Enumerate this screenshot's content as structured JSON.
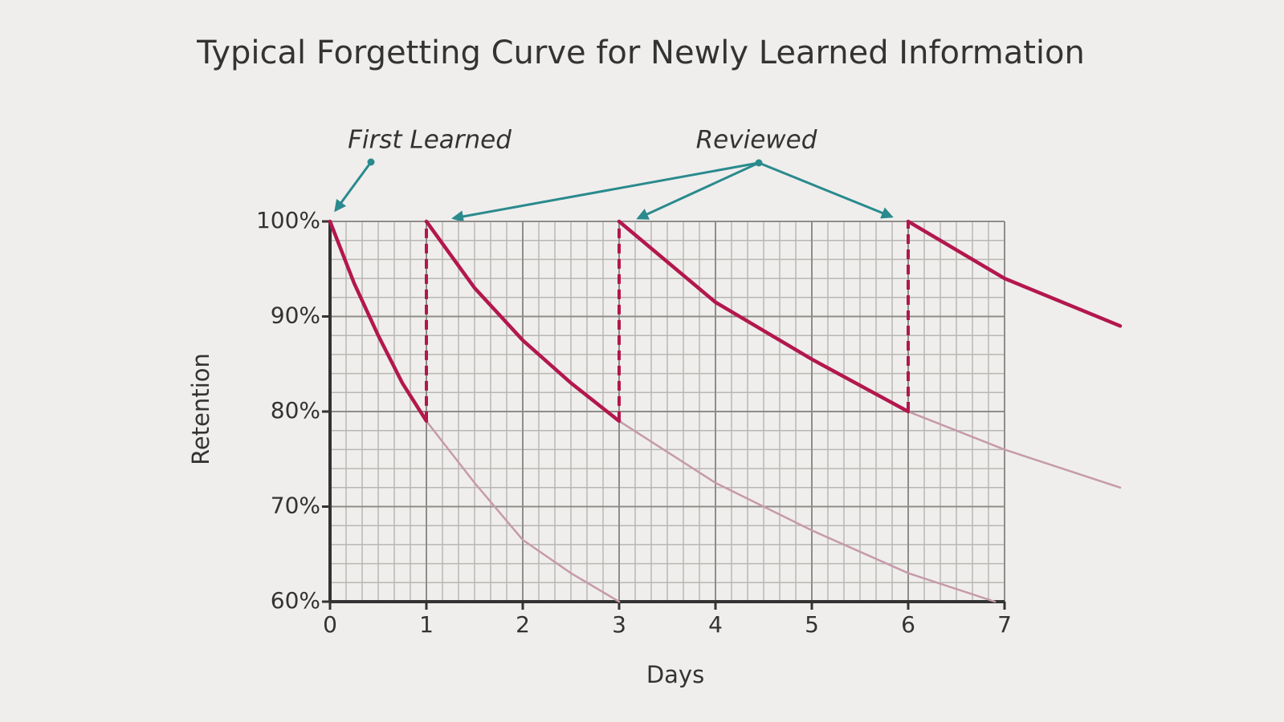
{
  "chart_data": {
    "type": "line",
    "title": "Typical Forgetting Curve for Newly Learned Information",
    "x_label": "Days",
    "y_label": "Retention",
    "annotations": [
      "First Learned",
      "Reviewed"
    ],
    "xlim": [
      0,
      7
    ],
    "xticks": [
      0,
      1,
      2,
      3,
      4,
      5,
      6,
      7
    ],
    "ylim": [
      60,
      100
    ],
    "yticks": [
      {
        "value": 60,
        "label": "60%"
      },
      {
        "value": 70,
        "label": "70%"
      },
      {
        "value": 80,
        "label": "80%"
      },
      {
        "value": 90,
        "label": "90%"
      },
      {
        "value": 100,
        "label": "100%"
      }
    ],
    "grid": true,
    "minor_divisions": {
      "x": 6,
      "y": 5
    },
    "series": [
      {
        "color": "#b3174e",
        "linewidth": 4.5,
        "x": [
          0,
          0.25,
          0.5,
          0.75,
          1
        ],
        "values": [
          100,
          93.5,
          88,
          83,
          79
        ]
      },
      {
        "color": "#b3174e",
        "linewidth": 4.5,
        "x": [
          1,
          1.5,
          2,
          2.5,
          3
        ],
        "values": [
          100,
          93,
          87.5,
          83,
          79
        ]
      },
      {
        "color": "#b3174e",
        "linewidth": 4.5,
        "x": [
          3,
          4,
          5,
          6
        ],
        "values": [
          100,
          91.5,
          85.5,
          80
        ]
      },
      {
        "color": "#b3174e",
        "linewidth": 4.5,
        "x": [
          6,
          7,
          8.2
        ],
        "values": [
          100,
          94,
          89
        ]
      },
      {
        "color": "#c69aab",
        "linewidth": 2.5,
        "x": [
          1,
          1.5,
          2,
          2.5,
          3
        ],
        "values": [
          79,
          72.5,
          66.5,
          63,
          60
        ]
      },
      {
        "color": "#c69aab",
        "linewidth": 2.5,
        "x": [
          3,
          4,
          5,
          6,
          6.9
        ],
        "values": [
          79,
          72.5,
          67.5,
          63,
          60
        ]
      },
      {
        "color": "#c69aab",
        "linewidth": 2.5,
        "x": [
          6,
          7,
          8.2
        ],
        "values": [
          80,
          76,
          72
        ]
      }
    ]
  }
}
